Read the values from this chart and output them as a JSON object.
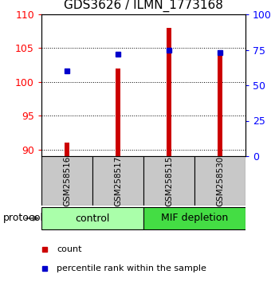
{
  "title": "GDS3626 / ILMN_1773168",
  "samples": [
    "GSM258516",
    "GSM258517",
    "GSM258515",
    "GSM258530"
  ],
  "red_values": [
    91.0,
    102.0,
    108.0,
    104.5
  ],
  "blue_values_pct": [
    60,
    72,
    75,
    73
  ],
  "ylim_left": [
    89,
    110
  ],
  "ylim_right": [
    0,
    100
  ],
  "yticks_left": [
    90,
    95,
    100,
    105,
    110
  ],
  "yticks_right": [
    0,
    25,
    50,
    75,
    100
  ],
  "ytick_labels_right": [
    "0",
    "25",
    "50",
    "75",
    "100%"
  ],
  "bar_bottom": 89,
  "bar_color": "#cc0000",
  "dot_color": "#0000cc",
  "groups": [
    {
      "label": "control",
      "samples": [
        0,
        1
      ],
      "color": "#aaffaa"
    },
    {
      "label": "MIF depletion",
      "samples": [
        2,
        3
      ],
      "color": "#44dd44"
    }
  ],
  "protocol_label": "protocol",
  "legend_red": "count",
  "legend_blue": "percentile rank within the sample",
  "bg_color": "#ffffff",
  "plot_bg": "#ffffff",
  "sample_area_color": "#c8c8c8",
  "title_fontsize": 11,
  "tick_fontsize": 9,
  "sample_fontsize": 7.5,
  "group_fontsize": 9,
  "legend_fontsize": 8
}
